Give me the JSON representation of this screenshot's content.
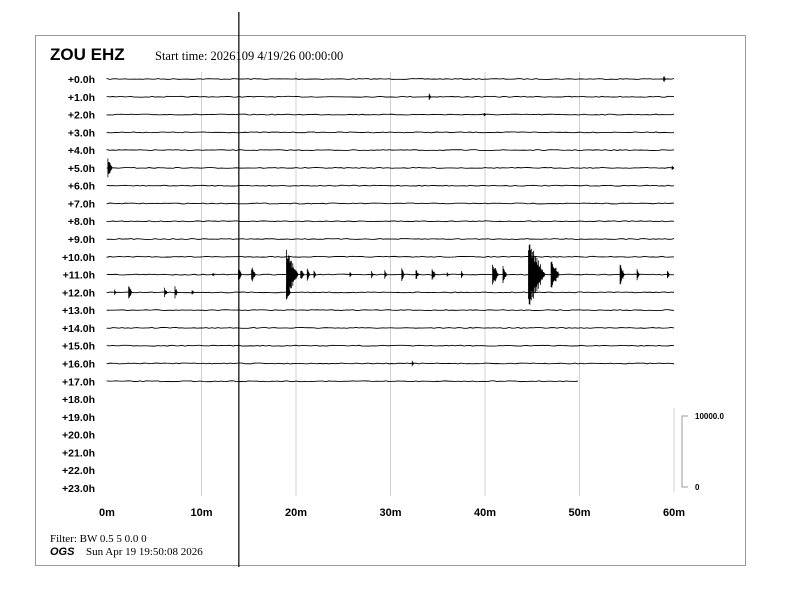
{
  "header": {
    "station": "ZOU EHZ",
    "start_time": "Start time: 2026109  4/19/26 00:00:00"
  },
  "footer": {
    "filter": "Filter: BW 0.5 5 0.0 0",
    "org": "OGS",
    "timestamp": "Sun Apr 19 19:50:08 2026"
  },
  "chart_data": {
    "type": "line",
    "subtype": "helicorder",
    "row_labels": [
      "+0.0h",
      "+1.0h",
      "+2.0h",
      "+3.0h",
      "+4.0h",
      "+5.0h",
      "+6.0h",
      "+7.0h",
      "+8.0h",
      "+9.0h",
      "+10.0h",
      "+11.0h",
      "+12.0h",
      "+13.0h",
      "+14.0h",
      "+15.0h",
      "+16.0h",
      "+17.0h",
      "+18.0h",
      "+19.0h",
      "+20.0h",
      "+21.0h",
      "+22.0h",
      "+23.0h"
    ],
    "x_ticks": [
      0,
      10,
      20,
      30,
      40,
      50,
      60
    ],
    "x_tick_labels": [
      "0m",
      "10m",
      "20m",
      "30m",
      "40m",
      "50m",
      "60m"
    ],
    "xlim": [
      0,
      60
    ],
    "rows_with_data": 18,
    "last_row_end_minute": 50,
    "grid": true,
    "scale": {
      "max_label": "10000.0",
      "min_label": "0",
      "max": 10000
    },
    "spike_minute": 13.9,
    "trace_color": "#000000",
    "grid_color": "#d0d0d0",
    "events": [
      {
        "row": 0,
        "minute": 58.9,
        "amp": 600
      },
      {
        "row": 1,
        "minute": 34.1,
        "amp": 500
      },
      {
        "row": 2,
        "minute": 39.9,
        "amp": 400
      },
      {
        "row": 5,
        "minute": 0.1,
        "amp": 1500
      },
      {
        "row": 5,
        "minute": 59.8,
        "amp": 500
      },
      {
        "row": 11,
        "minute": 11.2,
        "amp": 300
      },
      {
        "row": 11,
        "minute": 13.9,
        "amp": 1000
      },
      {
        "row": 11,
        "minute": 15.3,
        "amp": 1300
      },
      {
        "row": 11,
        "minute": 19.0,
        "amp": 3500
      },
      {
        "row": 11,
        "minute": 19.8,
        "amp": 900
      },
      {
        "row": 11,
        "minute": 20.5,
        "amp": 1000
      },
      {
        "row": 11,
        "minute": 21.2,
        "amp": 900
      },
      {
        "row": 11,
        "minute": 21.9,
        "amp": 700
      },
      {
        "row": 11,
        "minute": 25.7,
        "amp": 500
      },
      {
        "row": 11,
        "minute": 28.0,
        "amp": 600
      },
      {
        "row": 11,
        "minute": 29.4,
        "amp": 700
      },
      {
        "row": 11,
        "minute": 31.2,
        "amp": 900
      },
      {
        "row": 11,
        "minute": 32.7,
        "amp": 800
      },
      {
        "row": 11,
        "minute": 34.4,
        "amp": 1000
      },
      {
        "row": 11,
        "minute": 36.0,
        "amp": 400
      },
      {
        "row": 11,
        "minute": 37.5,
        "amp": 500
      },
      {
        "row": 11,
        "minute": 40.8,
        "amp": 1800
      },
      {
        "row": 11,
        "minute": 41.9,
        "amp": 1200
      },
      {
        "row": 11,
        "minute": 44.6,
        "amp": 5000
      },
      {
        "row": 11,
        "minute": 45.8,
        "amp": 1100
      },
      {
        "row": 11,
        "minute": 47.0,
        "amp": 2600
      },
      {
        "row": 11,
        "minute": 54.3,
        "amp": 1500
      },
      {
        "row": 11,
        "minute": 56.1,
        "amp": 800
      },
      {
        "row": 11,
        "minute": 59.3,
        "amp": 700
      },
      {
        "row": 12,
        "minute": 0.8,
        "amp": 500
      },
      {
        "row": 12,
        "minute": 2.3,
        "amp": 1000
      },
      {
        "row": 12,
        "minute": 6.1,
        "amp": 800
      },
      {
        "row": 12,
        "minute": 7.2,
        "amp": 900
      },
      {
        "row": 12,
        "minute": 9.0,
        "amp": 500
      },
      {
        "row": 12,
        "minute": 19.0,
        "amp": 1200
      },
      {
        "row": 16,
        "minute": 32.3,
        "amp": 400
      }
    ]
  }
}
